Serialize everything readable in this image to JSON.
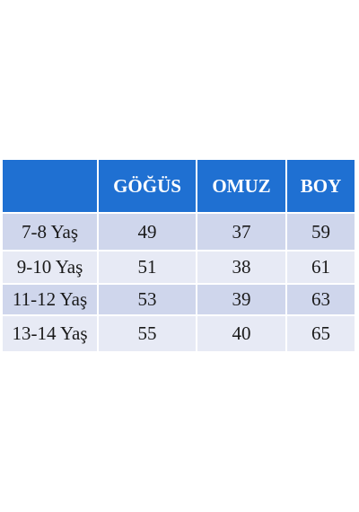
{
  "table": {
    "header": [
      "GÖĞÜS",
      "OMUZ",
      "BOY"
    ],
    "rows": [
      [
        "7-8 Yaş",
        49,
        37,
        59
      ],
      [
        "9-10 Yaş",
        51,
        38,
        61
      ],
      [
        "11-12 Yaş",
        53,
        39,
        63
      ],
      [
        "13-14 Yaş",
        55,
        40,
        65
      ]
    ]
  }
}
